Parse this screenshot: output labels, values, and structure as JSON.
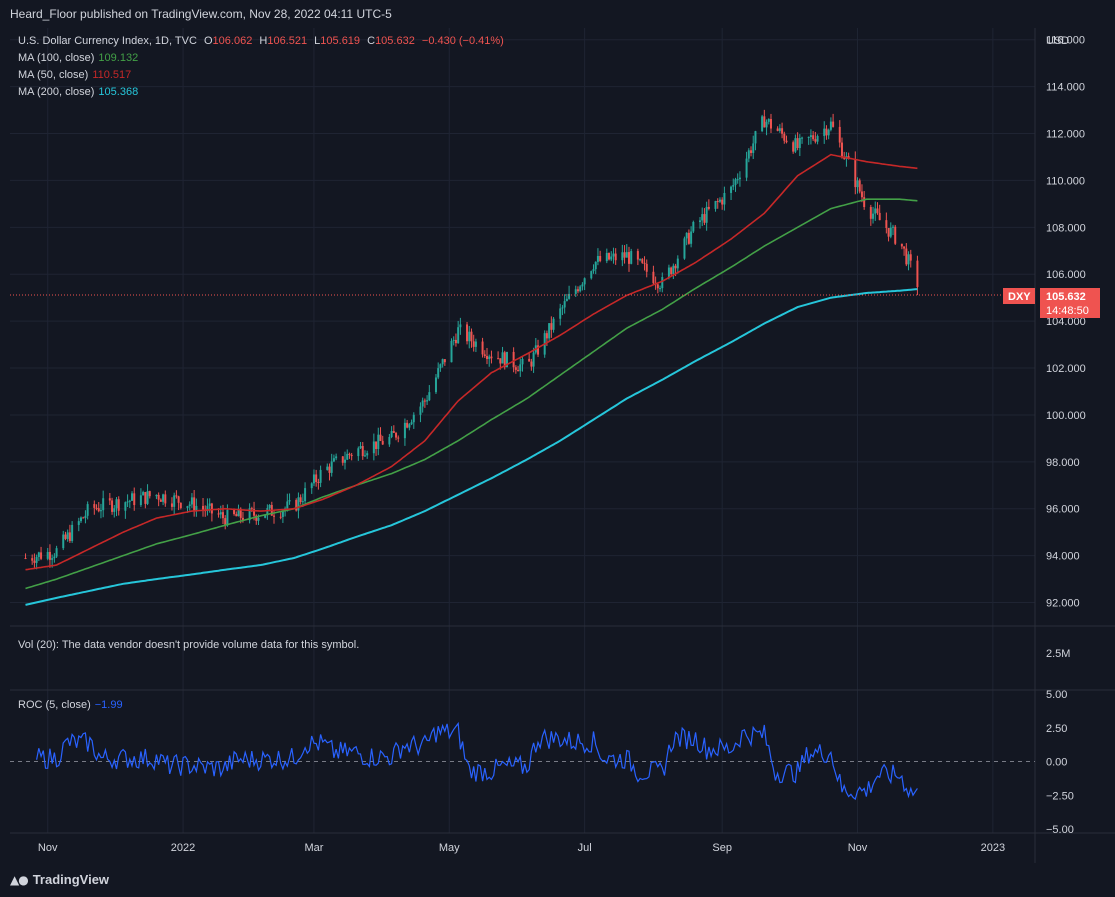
{
  "header": {
    "published": "Heard_Floor published on TradingView.com, Nov 28, 2022 04:11 UTC-5"
  },
  "footer": {
    "brand": "TradingView"
  },
  "legend": {
    "symbol": "U.S. Dollar Currency Index, 1D, TVC",
    "o_label": "O",
    "o": "106.062",
    "h_label": "H",
    "h": "106.521",
    "l_label": "L",
    "l": "105.619",
    "c_label": "C",
    "c": "105.632",
    "change": "−0.430 (−0.41%)",
    "ma100_label": "MA (100, close)",
    "ma100": "109.132",
    "ma50_label": "MA (50, close)",
    "ma50": "110.517",
    "ma200_label": "MA (200, close)",
    "ma200": "105.368"
  },
  "price_axis": {
    "currency": "USD",
    "ticks": [
      "116.000",
      "114.000",
      "112.000",
      "110.000",
      "108.000",
      "106.000",
      "104.000",
      "102.000",
      "100.000",
      "98.000",
      "96.000",
      "94.000",
      "92.000"
    ]
  },
  "last_price": {
    "symbol": "DXY",
    "price": "105.632",
    "countdown": "14:48:50"
  },
  "volume_pane": {
    "label": "Vol (20): The data vendor doesn't provide volume data for this symbol.",
    "tick": "2.5M"
  },
  "roc_pane": {
    "label": "ROC (5, close)",
    "value": "−1.99",
    "ticks": [
      "5.00",
      "2.50",
      "0.00",
      "−2.50",
      "−5.00"
    ]
  },
  "time_axis": {
    "labels": [
      "Nov",
      "2022",
      "Mar",
      "May",
      "Jul",
      "Sep",
      "Nov",
      "2023"
    ]
  },
  "colors": {
    "background": "#131722",
    "up": "#26a69a",
    "down": "#ef5350",
    "ma50": "#c62828",
    "ma100": "#43a047",
    "ma200": "#26c6da",
    "roc": "#2962ff",
    "grid": "#1f2433"
  },
  "chart_data": {
    "type": "candlestick",
    "title": "U.S. Dollar Currency Index, 1D, TVC",
    "ylim": [
      91.0,
      116.5
    ],
    "x": [
      "2021-10-22",
      "2021-11-05",
      "2021-11-20",
      "2021-12-05",
      "2021-12-20",
      "2022-01-05",
      "2022-01-20",
      "2022-02-05",
      "2022-02-20",
      "2022-03-05",
      "2022-03-20",
      "2022-04-05",
      "2022-04-20",
      "2022-05-05",
      "2022-05-20",
      "2022-06-05",
      "2022-06-20",
      "2022-07-05",
      "2022-07-20",
      "2022-08-05",
      "2022-08-20",
      "2022-09-05",
      "2022-09-20",
      "2022-10-05",
      "2022-10-20",
      "2022-11-05",
      "2022-11-20",
      "2022-11-28"
    ],
    "series": [
      {
        "name": "DXY close",
        "values": [
          93.9,
          94.2,
          96.0,
          96.3,
          96.6,
          96.2,
          95.6,
          95.8,
          96.1,
          97.6,
          98.5,
          99.0,
          100.6,
          103.6,
          102.6,
          102.0,
          104.4,
          106.5,
          106.8,
          105.6,
          108.1,
          109.6,
          112.6,
          111.4,
          112.4,
          108.9,
          107.4,
          105.632
        ]
      },
      {
        "name": "MA (50, close)",
        "values": [
          93.4,
          93.6,
          94.3,
          95.0,
          95.6,
          95.9,
          96.0,
          95.9,
          96.0,
          96.4,
          97.0,
          97.8,
          98.9,
          100.6,
          101.8,
          102.6,
          103.4,
          104.3,
          105.1,
          105.7,
          106.5,
          107.5,
          108.6,
          110.2,
          111.1,
          110.8,
          110.6,
          110.517
        ]
      },
      {
        "name": "MA (100, close)",
        "values": [
          92.6,
          93.0,
          93.5,
          94.0,
          94.5,
          94.9,
          95.3,
          95.7,
          96.0,
          96.5,
          97.0,
          97.5,
          98.1,
          98.9,
          99.8,
          100.7,
          101.7,
          102.7,
          103.7,
          104.5,
          105.4,
          106.3,
          107.2,
          108.0,
          108.8,
          109.2,
          109.2,
          109.132
        ]
      },
      {
        "name": "MA (200, close)",
        "values": [
          91.9,
          92.2,
          92.5,
          92.8,
          93.0,
          93.2,
          93.4,
          93.6,
          93.9,
          94.3,
          94.8,
          95.3,
          95.9,
          96.6,
          97.3,
          98.1,
          98.9,
          99.8,
          100.7,
          101.5,
          102.3,
          103.1,
          103.9,
          104.6,
          105.0,
          105.2,
          105.3,
          105.368
        ]
      }
    ],
    "roc": {
      "name": "ROC (5, close)",
      "ylim": [
        -5,
        5
      ],
      "last": -1.99
    }
  }
}
